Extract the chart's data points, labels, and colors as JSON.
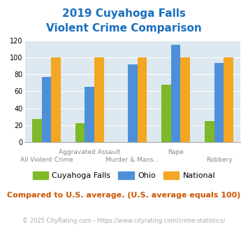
{
  "title_line1": "2019 Cuyahoga Falls",
  "title_line2": "Violent Crime Comparison",
  "categories": [
    "All Violent Crime",
    "Aggravated Assault",
    "Murder & Mans...",
    "Rape",
    "Robbery"
  ],
  "top_labels": {
    "1": "Aggravated Assault",
    "3": "Rape"
  },
  "bottom_labels": {
    "0": "All Violent Crime",
    "2": "Murder & Mans...",
    "4": "Robbery"
  },
  "series": {
    "Cuyahoga Falls": [
      27,
      22,
      0,
      68,
      25
    ],
    "Ohio": [
      77,
      65,
      92,
      115,
      93
    ],
    "National": [
      100,
      100,
      100,
      100,
      100
    ]
  },
  "colors": {
    "Cuyahoga Falls": "#7db928",
    "Ohio": "#4d90d9",
    "National": "#f5a623"
  },
  "ylim": [
    0,
    120
  ],
  "yticks": [
    0,
    20,
    40,
    60,
    80,
    100,
    120
  ],
  "plot_bg": "#dde8f0",
  "title_color": "#1a6fbf",
  "label_color": "#888888",
  "footer_note": "Compared to U.S. average. (U.S. average equals 100)",
  "copyright": "© 2025 CityRating.com - https://www.cityrating.com/crime-statistics/",
  "footer_color": "#cc5500",
  "copyright_color": "#aaaaaa",
  "bar_width": 0.22
}
